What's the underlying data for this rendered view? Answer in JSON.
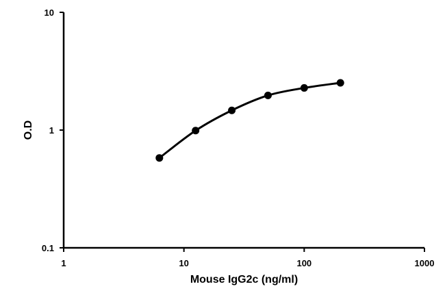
{
  "chart_data": {
    "type": "line",
    "x_scale": "log",
    "y_scale": "log",
    "xlabel": "Mouse IgG2c (ng/ml)",
    "ylabel": "O.D",
    "xlim": [
      1,
      1000
    ],
    "ylim": [
      0.1,
      10
    ],
    "x_ticks": [
      {
        "value": 1,
        "label": "1"
      },
      {
        "value": 10,
        "label": "10"
      },
      {
        "value": 100,
        "label": "100"
      },
      {
        "value": 1000,
        "label": "1000"
      }
    ],
    "y_ticks": [
      {
        "value": 0.1,
        "label": "0.1"
      },
      {
        "value": 1,
        "label": "1"
      },
      {
        "value": 10,
        "label": "10"
      }
    ],
    "grid": false,
    "legend": "none",
    "series": [
      {
        "color": "#000000",
        "marker": "circle",
        "smooth": true,
        "points": [
          {
            "x": 6.25,
            "y": 0.58
          },
          {
            "x": 12.5,
            "y": 0.99
          },
          {
            "x": 25,
            "y": 1.47
          },
          {
            "x": 50,
            "y": 1.97
          },
          {
            "x": 100,
            "y": 2.28
          },
          {
            "x": 200,
            "y": 2.52
          }
        ]
      }
    ]
  }
}
